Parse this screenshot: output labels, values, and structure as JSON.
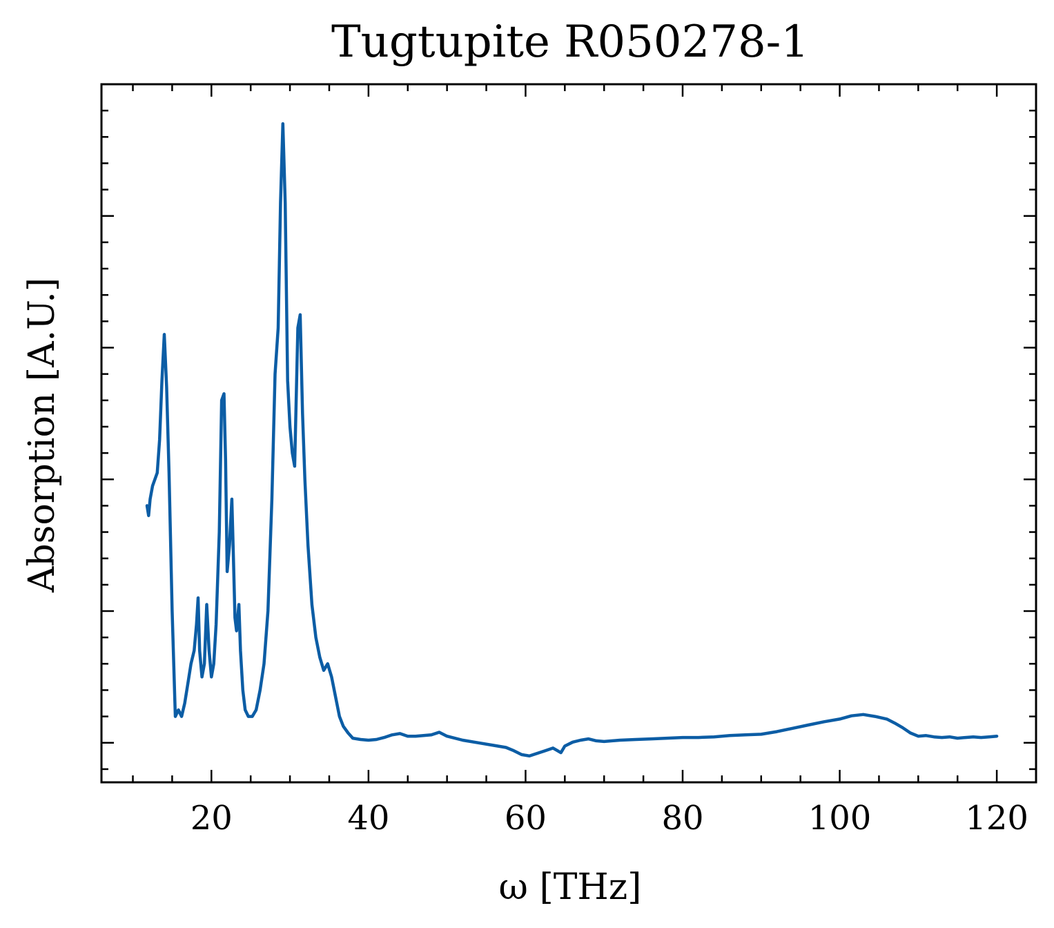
{
  "chart_data": {
    "type": "line",
    "title": "Tugtupite R050278-1",
    "xlabel": "ω [THz]",
    "ylabel": "Absorption [A.U.]",
    "xlim": [
      6,
      125
    ],
    "ylim": [
      -0.06,
      1.0
    ],
    "x_ticks": [
      20,
      40,
      60,
      80,
      100,
      120
    ],
    "x_tick_labels": [
      "20",
      "40",
      "60",
      "80",
      "100",
      "120"
    ],
    "y_major_ticks": [
      0.0,
      0.2,
      0.4,
      0.6,
      0.8
    ],
    "y_tick_labels_visible": false,
    "grid": false,
    "legend": "none",
    "line_color": "#0C5DA5",
    "series": [
      {
        "x": [
          11.8,
          12.0,
          12.2,
          12.5,
          12.8,
          13.1,
          13.4,
          13.7,
          14.0,
          14.3,
          14.6,
          15.0,
          15.4,
          15.8,
          16.2,
          16.6,
          17.0,
          17.4,
          17.8,
          18.1,
          18.3,
          18.5,
          18.8,
          19.1,
          19.4,
          19.7,
          20.0,
          20.3,
          20.6,
          21.0,
          21.3,
          21.6,
          21.8,
          22.0,
          22.3,
          22.6,
          22.8,
          23.0,
          23.2,
          23.5,
          23.7,
          24.0,
          24.3,
          24.7,
          25.2,
          25.7,
          26.2,
          26.7,
          27.2,
          27.7,
          28.1,
          28.5,
          28.8,
          29.1,
          29.4,
          29.7,
          30.0,
          30.3,
          30.6,
          31.0,
          31.3,
          31.6,
          31.9,
          32.3,
          32.8,
          33.3,
          33.8,
          34.3,
          34.8,
          35.3,
          35.8,
          36.3,
          36.8,
          37.4,
          38.0,
          39.0,
          40.0,
          41.0,
          42.0,
          43.0,
          44.0,
          45.0,
          46.0,
          47.0,
          48.0,
          49.0,
          50.0,
          52.0,
          54.0,
          56.0,
          57.5,
          58.5,
          59.5,
          60.5,
          61.5,
          62.5,
          63.5,
          64.5,
          65.0,
          66.0,
          67.0,
          68.0,
          69.0,
          70.0,
          72.0,
          74.0,
          76.0,
          78.0,
          80.0,
          82.0,
          84.0,
          86.0,
          88.0,
          90.0,
          92.0,
          94.0,
          96.0,
          98.0,
          100.0,
          101.5,
          103.0,
          104.5,
          106.0,
          107.0,
          108.0,
          109.0,
          110.0,
          111.0,
          112.0,
          113.0,
          114.0,
          115.0,
          116.0,
          117.0,
          118.0,
          119.0,
          120.0
        ],
        "y": [
          0.36,
          0.345,
          0.37,
          0.39,
          0.4,
          0.41,
          0.46,
          0.55,
          0.62,
          0.54,
          0.41,
          0.2,
          0.04,
          0.05,
          0.04,
          0.06,
          0.09,
          0.12,
          0.14,
          0.18,
          0.22,
          0.14,
          0.1,
          0.12,
          0.21,
          0.14,
          0.1,
          0.12,
          0.18,
          0.32,
          0.52,
          0.53,
          0.43,
          0.26,
          0.3,
          0.37,
          0.28,
          0.19,
          0.17,
          0.21,
          0.14,
          0.08,
          0.05,
          0.04,
          0.04,
          0.05,
          0.08,
          0.12,
          0.2,
          0.37,
          0.56,
          0.63,
          0.82,
          0.94,
          0.82,
          0.55,
          0.48,
          0.44,
          0.42,
          0.63,
          0.65,
          0.5,
          0.4,
          0.3,
          0.21,
          0.16,
          0.13,
          0.11,
          0.12,
          0.1,
          0.07,
          0.04,
          0.025,
          0.015,
          0.007,
          0.005,
          0.004,
          0.005,
          0.008,
          0.012,
          0.014,
          0.01,
          0.01,
          0.011,
          0.012,
          0.016,
          0.01,
          0.004,
          0.0,
          -0.004,
          -0.007,
          -0.012,
          -0.018,
          -0.02,
          -0.016,
          -0.012,
          -0.008,
          -0.015,
          -0.005,
          0.001,
          0.004,
          0.006,
          0.003,
          0.002,
          0.004,
          0.005,
          0.006,
          0.007,
          0.008,
          0.008,
          0.009,
          0.011,
          0.012,
          0.013,
          0.017,
          0.022,
          0.027,
          0.032,
          0.036,
          0.041,
          0.043,
          0.04,
          0.036,
          0.03,
          0.023,
          0.015,
          0.01,
          0.011,
          0.009,
          0.008,
          0.009,
          0.007,
          0.008,
          0.009,
          0.008,
          0.009,
          0.01
        ]
      }
    ]
  }
}
